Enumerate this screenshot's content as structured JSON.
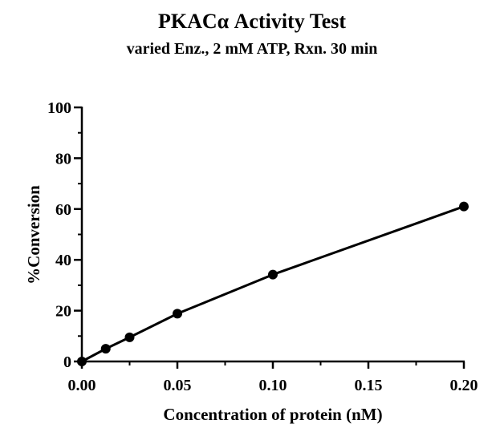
{
  "chart_data": {
    "type": "line",
    "title": "PKACα Activity Test",
    "subtitle": "varied Enz., 2 mM ATP, Rxn. 30 min",
    "xlabel": "Concentration of protein (nM)",
    "ylabel": "%Conversion",
    "xlim": [
      0,
      0.2
    ],
    "ylim": [
      0,
      100
    ],
    "x_ticks": [
      "0.00",
      "0.05",
      "0.10",
      "0.15",
      "0.20"
    ],
    "y_ticks": [
      "0",
      "20",
      "40",
      "60",
      "80",
      "100"
    ],
    "grid": false,
    "series": [
      {
        "x": [
          0,
          0.0125,
          0.025,
          0.05,
          0.1,
          0.2
        ],
        "values": [
          0,
          5,
          9.5,
          18.8,
          34.2,
          61
        ]
      }
    ]
  },
  "colors": {
    "line": "#000000",
    "marker": "#000000"
  }
}
